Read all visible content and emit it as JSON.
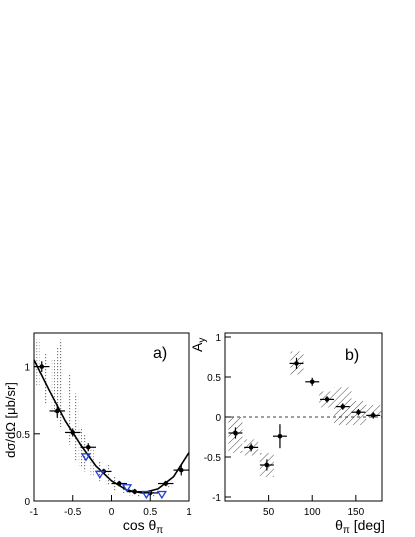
{
  "chart_data": [
    {
      "id": "a",
      "type": "scatter",
      "panel_label": "a)",
      "xlabel_main": "cos θ",
      "xlabel_sub": "π",
      "ylabel": "dσ/dΩ [μb/sr]",
      "xlim": [
        -1,
        1
      ],
      "ylim": [
        0,
        1.25
      ],
      "xticks": [
        -1,
        -0.5,
        0,
        0.5,
        1
      ],
      "xtick_labels": [
        "-1",
        "-0.5",
        "0",
        "0.5",
        "1"
      ],
      "yticks": [
        0,
        0.5,
        1
      ],
      "ytick_labels": [
        "0",
        "0.5",
        "1"
      ],
      "series": [
        {
          "marker": "filled-circle",
          "color": "#000000",
          "points": [
            {
              "x": -0.9,
              "y": 1.0,
              "xerr": 0.1,
              "yerr": 0.04
            },
            {
              "x": -0.7,
              "y": 0.67,
              "xerr": 0.1,
              "yerr": 0.05
            },
            {
              "x": -0.5,
              "y": 0.51,
              "xerr": 0.1,
              "yerr": 0.03
            },
            {
              "x": -0.3,
              "y": 0.4,
              "xerr": 0.1,
              "yerr": 0.03
            },
            {
              "x": -0.1,
              "y": 0.22,
              "xerr": 0.1,
              "yerr": 0.02
            },
            {
              "x": 0.1,
              "y": 0.13,
              "xerr": 0.1,
              "yerr": 0.02
            },
            {
              "x": 0.3,
              "y": 0.07,
              "xerr": 0.1,
              "yerr": 0.02
            },
            {
              "x": 0.5,
              "y": 0.06,
              "xerr": 0.1,
              "yerr": 0.02
            },
            {
              "x": 0.7,
              "y": 0.13,
              "xerr": 0.1,
              "yerr": 0.02
            },
            {
              "x": 0.9,
              "y": 0.23,
              "xerr": 0.1,
              "yerr": 0.04
            }
          ]
        },
        {
          "marker": "open-triangle-down",
          "color": "#1f3fd6",
          "points": [
            {
              "x": -0.33,
              "y": 0.33
            },
            {
              "x": -0.15,
              "y": 0.2
            },
            {
              "x": 0.2,
              "y": 0.1
            },
            {
              "x": 0.45,
              "y": 0.05
            },
            {
              "x": 0.65,
              "y": 0.05
            }
          ]
        }
      ],
      "fit_curve": {
        "color": "#000000",
        "x": [
          -1,
          -0.8,
          -0.6,
          -0.4,
          -0.2,
          0,
          0.2,
          0.4,
          0.6,
          0.8,
          1
        ],
        "y": [
          1.05,
          0.82,
          0.6,
          0.42,
          0.26,
          0.15,
          0.08,
          0.06,
          0.09,
          0.18,
          0.36
        ]
      },
      "syst_bands": [
        {
          "x": -0.95,
          "ylo": 0.85,
          "yhi": 1.2,
          "w": 0.04
        },
        {
          "x": -0.85,
          "ylo": 0.72,
          "yhi": 1.1,
          "w": 0.04
        },
        {
          "x": -0.75,
          "ylo": 0.65,
          "yhi": 1.05,
          "w": 0.04
        },
        {
          "x": -0.7,
          "ylo": 0.6,
          "yhi": 1.15,
          "w": 0.04
        },
        {
          "x": -0.65,
          "ylo": 0.55,
          "yhi": 1.2,
          "w": 0.04
        },
        {
          "x": -0.55,
          "ylo": 0.42,
          "yhi": 0.95,
          "w": 0.04
        },
        {
          "x": -0.45,
          "ylo": 0.3,
          "yhi": 0.8,
          "w": 0.04
        },
        {
          "x": -0.4,
          "ylo": 0.25,
          "yhi": 0.55,
          "w": 0.04
        },
        {
          "x": -0.35,
          "ylo": 0.22,
          "yhi": 0.5,
          "w": 0.04
        },
        {
          "x": -0.25,
          "ylo": 0.18,
          "yhi": 0.4,
          "w": 0.04
        },
        {
          "x": -0.15,
          "ylo": 0.15,
          "yhi": 0.3,
          "w": 0.04
        },
        {
          "x": -0.05,
          "ylo": 0.12,
          "yhi": 0.28,
          "w": 0.04
        },
        {
          "x": 0.05,
          "ylo": 0.08,
          "yhi": 0.18,
          "w": 0.04
        },
        {
          "x": 0.15,
          "ylo": 0.06,
          "yhi": 0.14,
          "w": 0.04
        },
        {
          "x": 0.25,
          "ylo": 0.04,
          "yhi": 0.1,
          "w": 0.04
        },
        {
          "x": 0.35,
          "ylo": 0.03,
          "yhi": 0.08,
          "w": 0.04
        },
        {
          "x": 0.55,
          "ylo": 0.03,
          "yhi": 0.08,
          "w": 0.04
        },
        {
          "x": 0.75,
          "ylo": 0.1,
          "yhi": 0.16,
          "w": 0.04
        }
      ]
    },
    {
      "id": "b",
      "type": "scatter",
      "panel_label": "b)",
      "xlabel_main": "θ",
      "xlabel_sub": "π",
      "xlabel_rest": " [deg]",
      "ylabel_main": "A",
      "ylabel_sub": "y",
      "xlim": [
        0,
        180
      ],
      "ylim": [
        -1.05,
        1.05
      ],
      "xticks": [
        50,
        100,
        150
      ],
      "xtick_labels": [
        "50",
        "100",
        "150"
      ],
      "yticks": [
        -1,
        -0.5,
        0,
        0.5,
        1
      ],
      "ytick_labels": [
        "-1",
        "-0.5",
        "0",
        "0.5",
        "1"
      ],
      "zero_line": true,
      "series": [
        {
          "marker": "filled-circle",
          "color": "#000000",
          "points": [
            {
              "x": 12,
              "y": -0.2,
              "xerr": 8,
              "yerr": 0.07
            },
            {
              "x": 30,
              "y": -0.38,
              "xerr": 8,
              "yerr": 0.05
            },
            {
              "x": 48,
              "y": -0.6,
              "xerr": 8,
              "yerr": 0.07
            },
            {
              "x": 63,
              "y": -0.24,
              "xerr": 8,
              "yerr": 0.15
            },
            {
              "x": 82,
              "y": 0.67,
              "xerr": 8,
              "yerr": 0.07
            },
            {
              "x": 100,
              "y": 0.44,
              "xerr": 8,
              "yerr": 0.05
            },
            {
              "x": 117,
              "y": 0.22,
              "xerr": 8,
              "yerr": 0.04
            },
            {
              "x": 135,
              "y": 0.13,
              "xerr": 8,
              "yerr": 0.04
            },
            {
              "x": 153,
              "y": 0.06,
              "xerr": 8,
              "yerr": 0.04
            },
            {
              "x": 170,
              "y": 0.02,
              "xerr": 8,
              "yerr": 0.04
            }
          ]
        }
      ],
      "syst_boxes": [
        {
          "x0": 4,
          "x1": 20,
          "ylo": -0.45,
          "yhi": 0.0
        },
        {
          "x0": 22,
          "x1": 38,
          "ylo": -0.48,
          "yhi": -0.28
        },
        {
          "x0": 40,
          "x1": 56,
          "ylo": -0.75,
          "yhi": -0.45
        },
        {
          "x0": 75,
          "x1": 90,
          "ylo": 0.53,
          "yhi": 0.82
        },
        {
          "x0": 108,
          "x1": 125,
          "ylo": 0.12,
          "yhi": 0.32
        },
        {
          "x0": 125,
          "x1": 145,
          "ylo": -0.1,
          "yhi": 0.37
        },
        {
          "x0": 145,
          "x1": 162,
          "ylo": -0.1,
          "yhi": 0.2
        },
        {
          "x0": 162,
          "x1": 180,
          "ylo": 0.0,
          "yhi": 0.15
        }
      ]
    }
  ]
}
